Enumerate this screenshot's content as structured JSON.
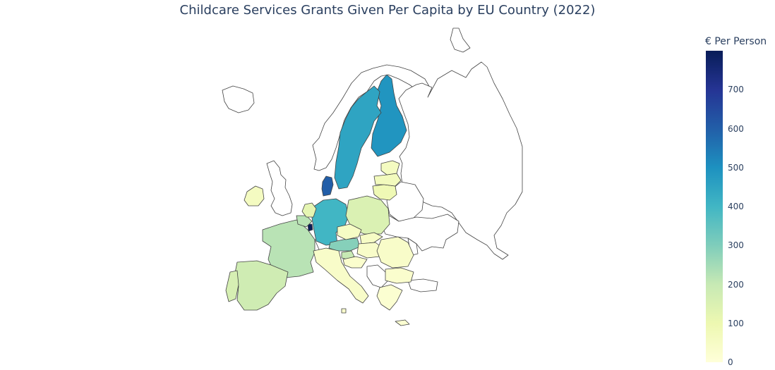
{
  "title": "Childcare Services Grants Given Per Capita by EU Country (2022)",
  "colorbar": {
    "title": "€ Per Person",
    "ticks": [
      "0",
      "100",
      "200",
      "300",
      "400",
      "500",
      "600",
      "700"
    ],
    "tick_values": [
      0,
      100,
      200,
      300,
      400,
      500,
      600,
      700
    ],
    "range": [
      0,
      800
    ],
    "colorscale": "YlGnBu"
  },
  "colors": {
    "border": "#444444",
    "no_data": "#ffffff"
  },
  "chart_data": {
    "type": "choropleth",
    "title": "Childcare Services Grants Given Per Capita by EU Country (2022)",
    "colorbar_title": "€ Per Person",
    "zrange": [
      0,
      800
    ],
    "countries": [
      {
        "name": "Luxembourg",
        "value": 800
      },
      {
        "name": "Denmark",
        "value": 600
      },
      {
        "name": "Finland",
        "value": 490
      },
      {
        "name": "Sweden",
        "value": 450
      },
      {
        "name": "Germany",
        "value": 400
      },
      {
        "name": "Austria",
        "value": 290
      },
      {
        "name": "France",
        "value": 220
      },
      {
        "name": "Belgium",
        "value": 220
      },
      {
        "name": "Slovenia",
        "value": 200
      },
      {
        "name": "Spain",
        "value": 180
      },
      {
        "name": "Portugal",
        "value": 160
      },
      {
        "name": "Poland",
        "value": 150
      },
      {
        "name": "Netherlands",
        "value": 120
      },
      {
        "name": "Lithuania",
        "value": 90
      },
      {
        "name": "Latvia",
        "value": 70
      },
      {
        "name": "Estonia",
        "value": 60
      },
      {
        "name": "Ireland",
        "value": 60
      },
      {
        "name": "Czechia",
        "value": 50
      },
      {
        "name": "Slovakia",
        "value": 50
      },
      {
        "name": "Hungary",
        "value": 40
      },
      {
        "name": "Romania",
        "value": 40
      },
      {
        "name": "Italy",
        "value": 40
      },
      {
        "name": "Bulgaria",
        "value": 30
      },
      {
        "name": "Croatia",
        "value": 30
      },
      {
        "name": "Greece",
        "value": 20
      },
      {
        "name": "Cyprus",
        "value": 20
      },
      {
        "name": "Malta",
        "value": 30
      }
    ]
  }
}
